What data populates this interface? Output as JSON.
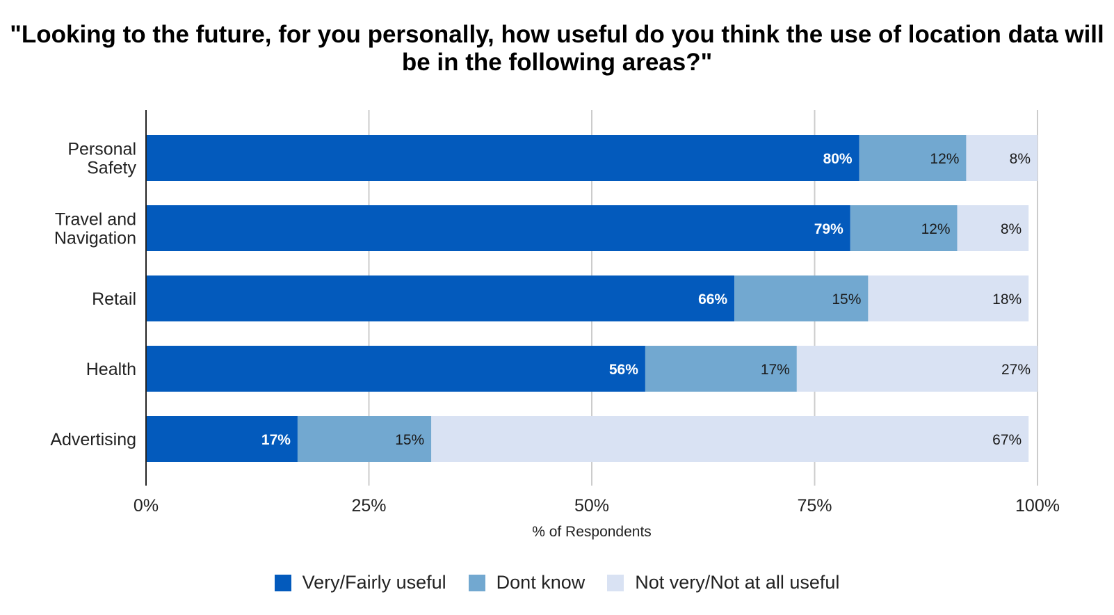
{
  "chart_data": {
    "type": "bar",
    "orientation": "horizontal",
    "stacked": true,
    "title": "\"Looking to the future, for you personally, how useful do you think the use of location data will be in the following areas?\"",
    "xlabel": "% of Respondents",
    "ylabel": "",
    "xlim": [
      0,
      100
    ],
    "xticks": [
      "0%",
      "25%",
      "50%",
      "75%",
      "100%"
    ],
    "grid": true,
    "legend_position": "bottom",
    "categories": [
      [
        "Personal",
        "Safety"
      ],
      [
        "Travel and",
        "Navigation"
      ],
      [
        "Retail"
      ],
      [
        "Health"
      ],
      [
        "Advertising"
      ]
    ],
    "series": [
      {
        "name": "Very/Fairly useful",
        "color": "#035ABC",
        "label_color": "#ffffff",
        "label_bold": true,
        "values": [
          80,
          79,
          66,
          56,
          17
        ],
        "labels": [
          "80%",
          "79%",
          "66%",
          "56%",
          "17%"
        ]
      },
      {
        "name": "Dont know",
        "color": "#72A8D0",
        "label_color": "#1a1a1a",
        "label_bold": false,
        "values": [
          12,
          12,
          15,
          17,
          15
        ],
        "labels": [
          "12%",
          "12%",
          "15%",
          "17%",
          "15%"
        ]
      },
      {
        "name": "Not very/Not at all useful",
        "color": "#D9E2F3",
        "label_color": "#1a1a1a",
        "label_bold": false,
        "values": [
          8,
          8,
          18,
          27,
          67
        ],
        "labels": [
          "8%",
          "8%",
          "18%",
          "27%",
          "67%"
        ]
      }
    ]
  }
}
